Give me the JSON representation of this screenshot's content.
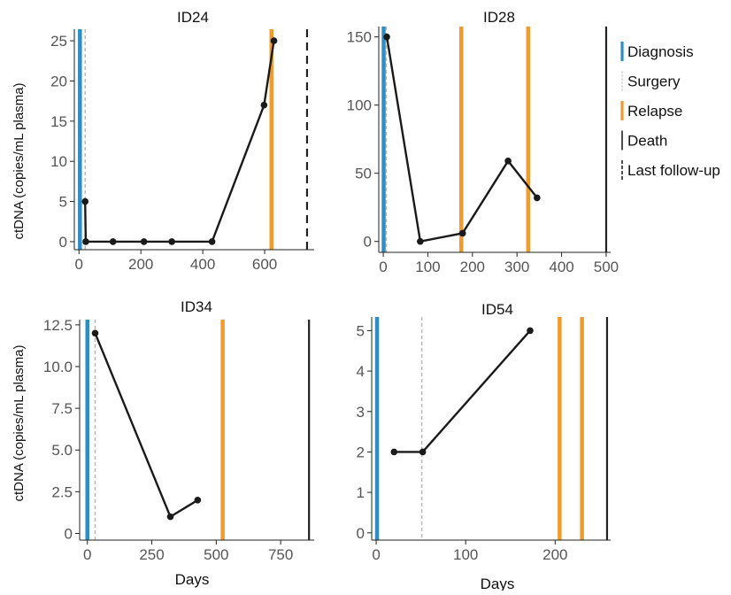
{
  "chart_data": {
    "type": "line",
    "ylabel": "ctDNA (copies/mL plasma)",
    "xlabel": "Days",
    "colors": {
      "Diagnosis": "#2b8fc6",
      "Surgery": "#b5b5b5",
      "Relapse": "#f29a2e",
      "Death": "#222222",
      "Last follow-up": "#222222",
      "series": "#1a1a1a"
    },
    "legend": {
      "placement": "right",
      "items": [
        {
          "label": "Diagnosis",
          "style": "thick",
          "color": "#2b8fc6"
        },
        {
          "label": "Surgery",
          "style": "dotted",
          "color": "#b5b5b5"
        },
        {
          "label": "Relapse",
          "style": "thick",
          "color": "#f29a2e"
        },
        {
          "label": "Death",
          "style": "thin",
          "color": "#222222"
        },
        {
          "label": "Last follow-up",
          "style": "dashed",
          "color": "#222222"
        }
      ]
    },
    "panels": [
      {
        "title": "ID24",
        "xlim": [
          -15,
          760
        ],
        "ylim": [
          -1,
          26
        ],
        "xticks": [
          "0",
          "200",
          "400",
          "600"
        ],
        "xtick_values": [
          0,
          200,
          400,
          600
        ],
        "yticks": [
          "0",
          "5",
          "10",
          "15",
          "20",
          "25"
        ],
        "ytick_values": [
          0,
          5,
          10,
          15,
          20,
          25
        ],
        "x": [
          20,
          22,
          110,
          210,
          300,
          430,
          598,
          630
        ],
        "y": [
          5,
          0,
          0,
          0,
          0,
          0,
          17,
          25
        ],
        "events": [
          {
            "type": "Diagnosis",
            "x": 3
          },
          {
            "type": "Surgery",
            "x": 20
          },
          {
            "type": "Relapse",
            "x": 622
          },
          {
            "type": "Last follow-up",
            "x": 737
          }
        ]
      },
      {
        "title": "ID28",
        "xlim": [
          -10,
          510
        ],
        "ylim": [
          -8,
          155
        ],
        "xticks": [
          "0",
          "100",
          "200",
          "300",
          "400",
          "500"
        ],
        "xtick_values": [
          0,
          100,
          200,
          300,
          400,
          500
        ],
        "yticks": [
          "0",
          "50",
          "100",
          "150"
        ],
        "ytick_values": [
          0,
          50,
          100,
          150
        ],
        "x": [
          8,
          83,
          178,
          280,
          345
        ],
        "y": [
          150,
          0,
          6,
          59,
          32
        ],
        "events": [
          {
            "type": "Diagnosis",
            "x": 1
          },
          {
            "type": "Surgery",
            "x": 7
          },
          {
            "type": "Relapse",
            "x": 175
          },
          {
            "type": "Relapse",
            "x": 325
          },
          {
            "type": "Death",
            "x": 500
          }
        ]
      },
      {
        "title": "ID34",
        "xlim": [
          -30,
          880
        ],
        "ylim": [
          -0.4,
          12.6
        ],
        "xticks": [
          "0",
          "250",
          "500",
          "750"
        ],
        "xtick_values": [
          0,
          250,
          500,
          750
        ],
        "yticks": [
          "0",
          "2.5",
          "5.0",
          "7.5",
          "10.0",
          "12.5"
        ],
        "ytick_values": [
          0,
          2.5,
          5,
          7.5,
          10,
          12.5
        ],
        "x": [
          30,
          322,
          428
        ],
        "y": [
          12,
          1,
          2
        ],
        "events": [
          {
            "type": "Diagnosis",
            "x": 0
          },
          {
            "type": "Surgery",
            "x": 30
          },
          {
            "type": "Relapse",
            "x": 525
          },
          {
            "type": "Death",
            "x": 860
          }
        ]
      },
      {
        "title": "ID54",
        "xlim": [
          -5,
          262
        ],
        "ylim": [
          -0.18,
          5.25
        ],
        "xticks": [
          "0",
          "100",
          "200"
        ],
        "xtick_values": [
          0,
          100,
          200
        ],
        "yticks": [
          "0",
          "1",
          "2",
          "3",
          "4",
          "5"
        ],
        "ytick_values": [
          0,
          1,
          2,
          3,
          4,
          5
        ],
        "x": [
          20,
          52,
          172
        ],
        "y": [
          2,
          2,
          5
        ],
        "events": [
          {
            "type": "Diagnosis",
            "x": 1
          },
          {
            "type": "Surgery",
            "x": 51
          },
          {
            "type": "Relapse",
            "x": 205
          },
          {
            "type": "Relapse",
            "x": 230
          },
          {
            "type": "Death",
            "x": 258
          }
        ]
      }
    ]
  }
}
